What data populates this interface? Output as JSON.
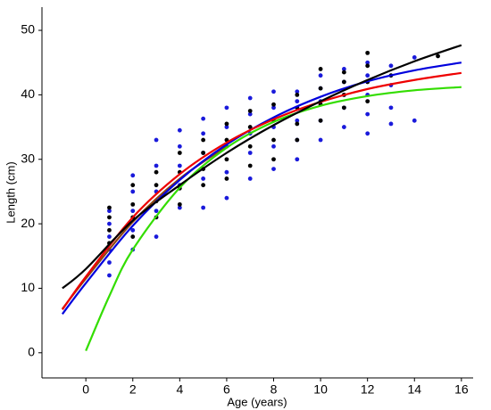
{
  "chart_data": {
    "type": "scatter",
    "x_label": "Age (years)",
    "y_label": "Length (cm)",
    "xlim": [
      -1.87,
      16.5
    ],
    "ylim": [
      -3.9,
      53.6
    ],
    "xticks": [
      0,
      2,
      4,
      6,
      8,
      10,
      12,
      14,
      16
    ],
    "yticks": [
      0,
      10,
      20,
      30,
      40,
      50
    ],
    "series": [
      {
        "type": "scatter",
        "color": "#1a1adb",
        "x": [
          1,
          1,
          1,
          1,
          1,
          1,
          2,
          2,
          2,
          2,
          2,
          3,
          3,
          3,
          3,
          3,
          4,
          4,
          4,
          4,
          4,
          5,
          5,
          5,
          5,
          5,
          6,
          6,
          6,
          6,
          6,
          7,
          7,
          7,
          7,
          7,
          8,
          8,
          8,
          8,
          8,
          9,
          9,
          9,
          9,
          9,
          10,
          10,
          10,
          10,
          10,
          11,
          11,
          11,
          11,
          11,
          12,
          12,
          12,
          12,
          12,
          13,
          13,
          13,
          13,
          14,
          14
        ],
        "values": [
          12,
          14,
          16,
          18,
          20,
          22,
          16,
          19,
          22,
          25,
          27.5,
          18,
          22,
          25,
          29,
          33,
          22.5,
          26,
          29,
          32,
          34.5,
          22.5,
          27,
          31,
          34,
          36.3,
          24,
          28,
          32,
          35,
          38,
          27,
          31,
          34,
          37,
          39.5,
          28.5,
          32,
          35,
          38,
          40.5,
          30,
          33,
          36,
          39,
          40.5,
          33,
          36,
          39,
          41,
          43,
          35,
          38,
          40,
          42,
          44,
          34,
          37,
          40,
          43,
          45,
          35.5,
          38,
          41.5,
          44.5,
          36,
          45.8
        ]
      },
      {
        "type": "scatter",
        "color": "#000000",
        "x": [
          1,
          1,
          1,
          1,
          2,
          2,
          2,
          2,
          3,
          3,
          3,
          3,
          4,
          4,
          4,
          4,
          5,
          5,
          5,
          5,
          6,
          6,
          6,
          6,
          7,
          7,
          7,
          7,
          8,
          8,
          8,
          8,
          9,
          9,
          9,
          9,
          10,
          10,
          10,
          10,
          11,
          11,
          11,
          11,
          12,
          12,
          12,
          12,
          13,
          15
        ],
        "values": [
          17,
          19,
          21,
          22.5,
          18,
          21,
          23,
          26,
          21,
          23.5,
          26,
          28,
          23,
          25.5,
          28,
          31,
          26,
          28.5,
          31,
          33,
          27,
          30,
          33,
          35.5,
          29,
          32,
          35,
          37.5,
          30,
          33,
          36,
          38.5,
          33,
          35.5,
          38,
          40,
          36,
          38.5,
          41,
          44,
          38,
          40,
          42,
          43.5,
          39,
          42,
          44.5,
          46.5,
          43,
          46
        ]
      },
      {
        "type": "line",
        "color": "#8b4513",
        "x": [
          -1,
          0,
          2,
          4,
          6
        ],
        "values": [
          6.8,
          11.5,
          20.3,
          27,
          32
        ]
      },
      {
        "type": "line",
        "color": "#33dd00",
        "x": [
          0,
          1,
          2,
          4,
          6,
          8,
          10,
          12,
          14,
          16
        ],
        "values": [
          0.3,
          8.8,
          16,
          25.6,
          31.8,
          35.8,
          38.3,
          39.8,
          40.7,
          41.2
        ]
      },
      {
        "type": "line",
        "color": "#0000dd",
        "x": [
          -1,
          0,
          2,
          4,
          6,
          8,
          10,
          12,
          14,
          16
        ],
        "values": [
          6,
          10.8,
          19.7,
          26.8,
          32.3,
          36.5,
          39.7,
          42.1,
          43.8,
          45
        ]
      },
      {
        "type": "line",
        "color": "#ee0000",
        "x": [
          -1,
          0,
          2,
          4,
          6,
          8,
          10,
          12,
          14,
          16
        ],
        "values": [
          6.7,
          11.8,
          21,
          27.7,
          32.6,
          36.2,
          38.9,
          40.9,
          42.3,
          43.4
        ]
      },
      {
        "type": "line",
        "color": "#000000",
        "x": [
          -1,
          0,
          2,
          4,
          6,
          8,
          10,
          12,
          14,
          16
        ],
        "values": [
          10,
          13,
          20.5,
          26,
          31,
          35.3,
          39,
          42.3,
          45.2,
          47.7
        ]
      }
    ]
  }
}
